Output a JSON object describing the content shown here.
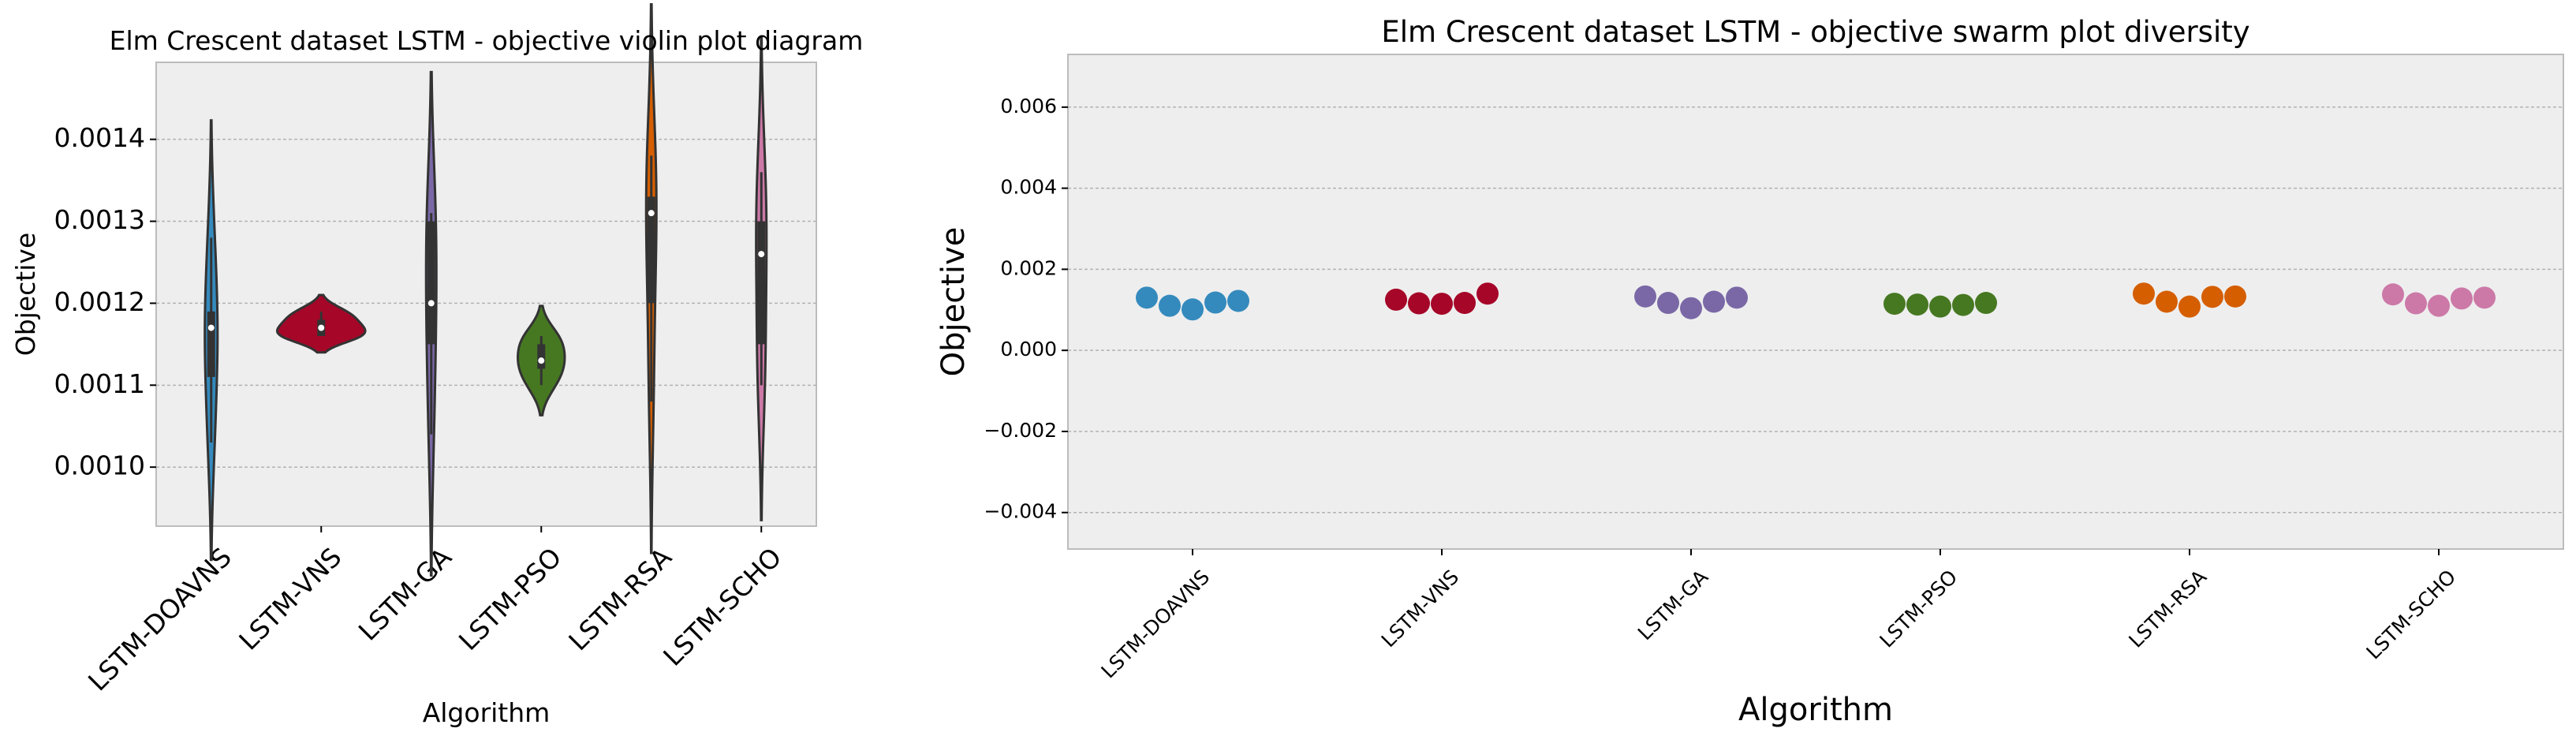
{
  "chart_data": [
    {
      "type": "violin",
      "title": "Elm Crescent dataset LSTM -  objective violin plot diagram",
      "xlabel": "Algorithm",
      "ylabel": "Objective",
      "categories": [
        "LSTM-DOAVNS",
        "LSTM-VNS",
        "LSTM-GA",
        "LSTM-PSO",
        "LSTM-RSA",
        "LSTM-SCHO"
      ],
      "colors": [
        "#348ABD",
        "#A60628",
        "#7A68A6",
        "#467821",
        "#D55E00",
        "#CC79A7"
      ],
      "values": [
        [
          0.00128,
          0.00111,
          0.00103,
          0.00117,
          0.00119
        ],
        [
          0.00118,
          0.00116,
          0.00116,
          0.00117,
          0.00119
        ],
        [
          0.00131,
          0.00115,
          0.00104,
          0.0012,
          0.0013
        ],
        [
          0.00115,
          0.00113,
          0.0011,
          0.00112,
          0.00116
        ],
        [
          0.00138,
          0.0012,
          0.00108,
          0.00131,
          0.00133
        ],
        [
          0.00136,
          0.00115,
          0.0011,
          0.00126,
          0.0013
        ]
      ],
      "ylim": [
        0.000928,
        0.001494
      ],
      "yticks": [
        {
          "value": 0.001,
          "label": "0.0010"
        },
        0.0011,
        0.0012,
        0.0013,
        0.0014
      ],
      "grid": true
    },
    {
      "type": "swarm",
      "title": "Elm Crescent dataset LSTM -  objective swarm plot diversity",
      "xlabel": "Algorithm",
      "ylabel": "Objective",
      "categories": [
        "LSTM-DOAVNS",
        "LSTM-VNS",
        "LSTM-GA",
        "LSTM-PSO",
        "LSTM-RSA",
        "LSTM-SCHO"
      ],
      "colors": [
        "#348ABD",
        "#A60628",
        "#7A68A6",
        "#467821",
        "#D55E00",
        "#CC79A7"
      ],
      "values": [
        [
          0.0013,
          0.0011,
          0.00101,
          0.00118,
          0.00122
        ],
        [
          0.00125,
          0.00116,
          0.00115,
          0.00117,
          0.0014
        ],
        [
          0.00133,
          0.00117,
          0.00104,
          0.0012,
          0.0013
        ],
        [
          0.00115,
          0.00113,
          0.00108,
          0.00112,
          0.00117
        ],
        [
          0.0014,
          0.0012,
          0.00108,
          0.00132,
          0.00133
        ],
        [
          0.00138,
          0.00116,
          0.0011,
          0.00128,
          0.0013
        ]
      ],
      "ylim": [
        -0.0049,
        0.0073
      ],
      "yticks": [
        {
          "value": -0.004,
          "label": "−0.004"
        },
        {
          "value": -0.002,
          "label": "−0.002"
        },
        {
          "value": 0,
          "label": "0.000"
        },
        0.002,
        0.004,
        0.006
      ],
      "grid": true
    }
  ]
}
